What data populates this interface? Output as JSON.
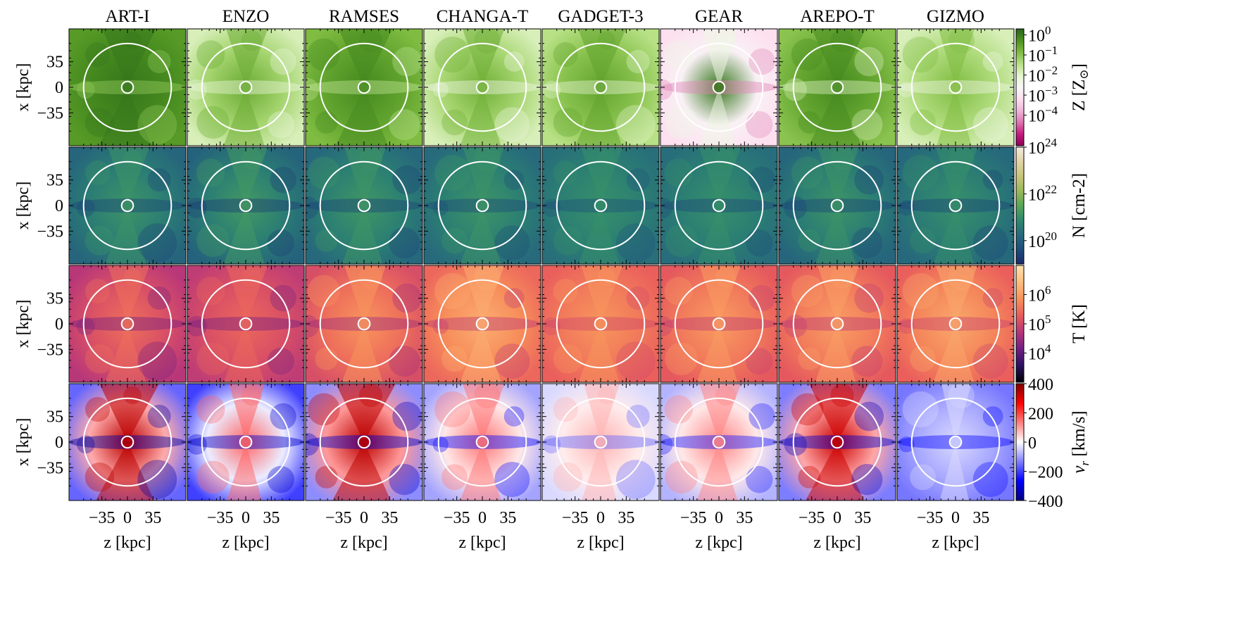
{
  "chart_data": {
    "type": "heatmap",
    "title": "",
    "codes": [
      "ART-I",
      "ENZO",
      "RAMSES",
      "CHANGA-T",
      "GADGET-3",
      "GEAR",
      "AREPO-T",
      "GIZMO"
    ],
    "xlabel": "z [kpc]",
    "ylabel": "x [kpc]",
    "x_ticks": [
      "−35",
      "0",
      "35"
    ],
    "y_ticks": [
      "35",
      "0",
      "−35"
    ],
    "axis_range_kpc": [
      -80,
      80
    ],
    "circles_kpc": [
      8,
      60
    ],
    "rows": [
      {
        "quantity": "metallicity",
        "colorbar_label": "Z [Z",
        "colorbar_sym": "⊙",
        "colorbar_label_end": "]",
        "scale": "log",
        "range": [
          3e-06,
          2
        ],
        "colorbar_ticks": [
          {
            "base": "10",
            "exp": "0",
            "value": 1
          },
          {
            "base": "10",
            "exp": "−1",
            "value": 0.1
          },
          {
            "base": "10",
            "exp": "−2",
            "value": 0.01
          },
          {
            "base": "10",
            "exp": "−3",
            "value": 0.001
          },
          {
            "base": "10",
            "exp": "−4",
            "value": 0.0001
          }
        ],
        "colormap": [
          "#8e0152",
          "#c51b7d",
          "#de77ae",
          "#f1b6da",
          "#fde0ef",
          "#f7f7f7",
          "#e6f5d0",
          "#b8e186",
          "#7fbc41",
          "#4d9221",
          "#276419"
        ]
      },
      {
        "quantity": "column_density",
        "colorbar_label": "N [cm-2]",
        "scale": "log",
        "range": [
          1e+19,
          1e+24
        ],
        "colorbar_ticks": [
          {
            "base": "10",
            "exp": "24",
            "value": 1e+24
          },
          {
            "base": "10",
            "exp": "22",
            "value": 1e+22
          },
          {
            "base": "10",
            "exp": "20",
            "value": 1e+20
          }
        ],
        "colormap": [
          "#1b2a6b",
          "#1e4d7a",
          "#276a7c",
          "#2e8a6e",
          "#58a658",
          "#9bb85a",
          "#c9c47a",
          "#e3d3a8",
          "#f3ecdf"
        ]
      },
      {
        "quantity": "temperature",
        "colorbar_label": "T [K]",
        "scale": "log",
        "range": [
          1000,
          10000000
        ],
        "colorbar_ticks": [
          {
            "base": "10",
            "exp": "6",
            "value": 1000000
          },
          {
            "base": "10",
            "exp": "5",
            "value": 100000
          },
          {
            "base": "10",
            "exp": "4",
            "value": 10000
          }
        ],
        "colormap": [
          "#000004",
          "#2c115f",
          "#721f81",
          "#b73779",
          "#e95c5c",
          "#f8935a",
          "#fdbf80",
          "#fde0b0"
        ]
      },
      {
        "quantity": "radial_velocity",
        "colorbar_label": "v",
        "colorbar_sub": "r",
        "colorbar_label_end": " [km/s]",
        "scale": "linear",
        "range": [
          -400,
          400
        ],
        "colorbar_ticks": [
          {
            "base": "400",
            "exp": "",
            "value": 400
          },
          {
            "base": "200",
            "exp": "",
            "value": 200
          },
          {
            "base": "0",
            "exp": "",
            "value": 0
          },
          {
            "base": "−200",
            "exp": "",
            "value": -200
          },
          {
            "base": "−400",
            "exp": "",
            "value": -400
          }
        ],
        "colormap": [
          "#00007f",
          "#0000ff",
          "#8080ff",
          "#ffffff",
          "#ff8080",
          "#ff0000",
          "#7f0000"
        ]
      }
    ]
  }
}
